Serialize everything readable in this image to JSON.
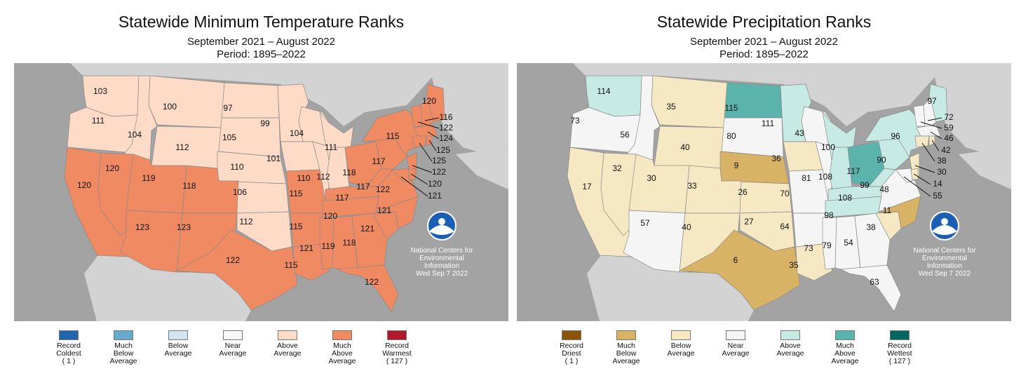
{
  "panels": [
    {
      "title": "Statewide Minimum Temperature Ranks",
      "subtitle": "September 2021 – August 2022",
      "period": "Period: 1895–2022",
      "credit": [
        "National Centers for",
        "Environmental",
        "Information",
        "Wed Sep  7 2022"
      ],
      "colors": {
        "much_above": "#ef8a62",
        "above": "#fddbc7",
        "near": "#f7f7f7"
      },
      "legend": [
        {
          "label": "Record\nColdest\n( 1 )",
          "color": "#2166ac"
        },
        {
          "label": "Much\nBelow\nAverage",
          "color": "#67a9cf"
        },
        {
          "label": "Below\nAverage",
          "color": "#d1e5f0"
        },
        {
          "label": "Near\nAverage",
          "color": "#f7f7f7"
        },
        {
          "label": "Above\nAverage",
          "color": "#fddbc7"
        },
        {
          "label": "Much\nAbove\nAverage",
          "color": "#ef8a62"
        },
        {
          "label": "Record\nWarmest\n( 127 )",
          "color": "#b2182b"
        }
      ],
      "ranks": [
        {
          "state": "WA",
          "value": "103",
          "cat": "above"
        },
        {
          "state": "OR",
          "value": "111",
          "cat": "above"
        },
        {
          "state": "ID",
          "value": "104",
          "cat": "above"
        },
        {
          "state": "MT",
          "value": "100",
          "cat": "above"
        },
        {
          "state": "WY",
          "value": "112",
          "cat": "above"
        },
        {
          "state": "ND",
          "value": "97",
          "cat": "above"
        },
        {
          "state": "SD",
          "value": "105",
          "cat": "above"
        },
        {
          "state": "MN",
          "value": "99",
          "cat": "above"
        },
        {
          "state": "WI",
          "value": "104",
          "cat": "above"
        },
        {
          "state": "MI",
          "value": "111",
          "cat": "above"
        },
        {
          "state": "IA",
          "value": "101",
          "cat": "above"
        },
        {
          "state": "NE",
          "value": "110",
          "cat": "above"
        },
        {
          "state": "KS",
          "value": "106",
          "cat": "above"
        },
        {
          "state": "OK",
          "value": "112",
          "cat": "above"
        },
        {
          "state": "IL",
          "value": "110",
          "cat": "above"
        },
        {
          "state": "IN",
          "value": "112",
          "cat": "above"
        },
        {
          "state": "CA",
          "value": "120",
          "cat": "much_above"
        },
        {
          "state": "NV",
          "value": "120",
          "cat": "much_above"
        },
        {
          "state": "UT",
          "value": "119",
          "cat": "much_above"
        },
        {
          "state": "CO",
          "value": "118",
          "cat": "much_above"
        },
        {
          "state": "AZ",
          "value": "123",
          "cat": "much_above"
        },
        {
          "state": "NM",
          "value": "123",
          "cat": "much_above"
        },
        {
          "state": "TX",
          "value": "122",
          "cat": "much_above"
        },
        {
          "state": "MO",
          "value": "115",
          "cat": "much_above"
        },
        {
          "state": "AR",
          "value": "115",
          "cat": "much_above"
        },
        {
          "state": "LA",
          "value": "115",
          "cat": "much_above"
        },
        {
          "state": "MS",
          "value": "121",
          "cat": "much_above"
        },
        {
          "state": "AL",
          "value": "119",
          "cat": "much_above"
        },
        {
          "state": "GA",
          "value": "118",
          "cat": "much_above"
        },
        {
          "state": "FL",
          "value": "122",
          "cat": "much_above"
        },
        {
          "state": "TN",
          "value": "120",
          "cat": "much_above"
        },
        {
          "state": "KY",
          "value": "117",
          "cat": "much_above"
        },
        {
          "state": "OH",
          "value": "118",
          "cat": "much_above"
        },
        {
          "state": "WV",
          "value": "117",
          "cat": "much_above"
        },
        {
          "state": "VA",
          "value": "122",
          "cat": "much_above"
        },
        {
          "state": "NC",
          "value": "121",
          "cat": "much_above"
        },
        {
          "state": "SC",
          "value": "121",
          "cat": "much_above"
        },
        {
          "state": "PA",
          "value": "117",
          "cat": "much_above"
        },
        {
          "state": "NY",
          "value": "115",
          "cat": "much_above"
        },
        {
          "state": "ME",
          "value": "120",
          "cat": "much_above"
        },
        {
          "state": "NH",
          "value": "116",
          "cat": "much_above"
        },
        {
          "state": "VT",
          "value": "122",
          "cat": "much_above"
        },
        {
          "state": "MA",
          "value": "124",
          "cat": "much_above"
        },
        {
          "state": "RI",
          "value": "125",
          "cat": "much_above"
        },
        {
          "state": "CT",
          "value": "125",
          "cat": "much_above"
        },
        {
          "state": "NJ",
          "value": "122",
          "cat": "much_above"
        },
        {
          "state": "DE",
          "value": "120",
          "cat": "much_above"
        },
        {
          "state": "MD",
          "value": "121",
          "cat": "much_above"
        }
      ]
    },
    {
      "title": "Statewide Precipitation Ranks",
      "subtitle": "September 2021 – August 2022",
      "period": "Period: 1895–2022",
      "credit": [
        "National Centers for",
        "Environmental",
        "Information",
        "Wed Sep  7 2022"
      ],
      "colors": {
        "much_below": "#d8b365",
        "below": "#f6e8c3",
        "near": "#f5f5f5",
        "above": "#c7eae5",
        "much_above": "#5ab4ac"
      },
      "legend": [
        {
          "label": "Record\nDriest\n( 1 )",
          "color": "#8c510a"
        },
        {
          "label": "Much\nBelow\nAverage",
          "color": "#d8b365"
        },
        {
          "label": "Below\nAverage",
          "color": "#f6e8c3"
        },
        {
          "label": "Near\nAverage",
          "color": "#f5f5f5"
        },
        {
          "label": "Above\nAverage",
          "color": "#c7eae5"
        },
        {
          "label": "Much\nAbove\nAverage",
          "color": "#5ab4ac"
        },
        {
          "label": "Record\nWettest\n( 127 )",
          "color": "#01665e"
        }
      ],
      "ranks": [
        {
          "state": "WA",
          "value": "114",
          "cat": "above"
        },
        {
          "state": "OR",
          "value": "73",
          "cat": "near"
        },
        {
          "state": "ID",
          "value": "56",
          "cat": "near"
        },
        {
          "state": "MT",
          "value": "35",
          "cat": "below"
        },
        {
          "state": "WY",
          "value": "40",
          "cat": "below"
        },
        {
          "state": "ND",
          "value": "115",
          "cat": "much_above"
        },
        {
          "state": "SD",
          "value": "80",
          "cat": "near"
        },
        {
          "state": "MN",
          "value": "111",
          "cat": "above"
        },
        {
          "state": "WI",
          "value": "43",
          "cat": "near"
        },
        {
          "state": "MI",
          "value": "100",
          "cat": "above"
        },
        {
          "state": "IA",
          "value": "36",
          "cat": "below"
        },
        {
          "state": "NE",
          "value": "9",
          "cat": "much_below"
        },
        {
          "state": "KS",
          "value": "26",
          "cat": "below"
        },
        {
          "state": "OK",
          "value": "27",
          "cat": "below"
        },
        {
          "state": "IL",
          "value": "81",
          "cat": "near"
        },
        {
          "state": "IN",
          "value": "108",
          "cat": "above"
        },
        {
          "state": "CA",
          "value": "17",
          "cat": "below"
        },
        {
          "state": "NV",
          "value": "32",
          "cat": "below"
        },
        {
          "state": "UT",
          "value": "30",
          "cat": "below"
        },
        {
          "state": "CO",
          "value": "33",
          "cat": "below"
        },
        {
          "state": "AZ",
          "value": "57",
          "cat": "near"
        },
        {
          "state": "NM",
          "value": "40",
          "cat": "below"
        },
        {
          "state": "TX",
          "value": "6",
          "cat": "much_below"
        },
        {
          "state": "MO",
          "value": "70",
          "cat": "near"
        },
        {
          "state": "AR",
          "value": "64",
          "cat": "near"
        },
        {
          "state": "LA",
          "value": "35",
          "cat": "below"
        },
        {
          "state": "MS",
          "value": "73",
          "cat": "near"
        },
        {
          "state": "AL",
          "value": "79",
          "cat": "near"
        },
        {
          "state": "GA",
          "value": "54",
          "cat": "near"
        },
        {
          "state": "FL",
          "value": "63",
          "cat": "near"
        },
        {
          "state": "TN",
          "value": "98",
          "cat": "above"
        },
        {
          "state": "KY",
          "value": "108",
          "cat": "above"
        },
        {
          "state": "OH",
          "value": "117",
          "cat": "much_above"
        },
        {
          "state": "WV",
          "value": "99",
          "cat": "above"
        },
        {
          "state": "VA",
          "value": "48",
          "cat": "near"
        },
        {
          "state": "NC",
          "value": "11",
          "cat": "much_below"
        },
        {
          "state": "SC",
          "value": "38",
          "cat": "below"
        },
        {
          "state": "PA",
          "value": "90",
          "cat": "above"
        },
        {
          "state": "NY",
          "value": "96",
          "cat": "above"
        },
        {
          "state": "ME",
          "value": "97",
          "cat": "above"
        },
        {
          "state": "NH",
          "value": "72",
          "cat": "near"
        },
        {
          "state": "VT",
          "value": "59",
          "cat": "near"
        },
        {
          "state": "MA",
          "value": "46",
          "cat": "near"
        },
        {
          "state": "RI",
          "value": "42",
          "cat": "below"
        },
        {
          "state": "CT",
          "value": "38",
          "cat": "below"
        },
        {
          "state": "NJ",
          "value": "30",
          "cat": "below"
        },
        {
          "state": "DE",
          "value": "14",
          "cat": "below"
        },
        {
          "state": "MD",
          "value": "55",
          "cat": "near"
        }
      ]
    }
  ]
}
